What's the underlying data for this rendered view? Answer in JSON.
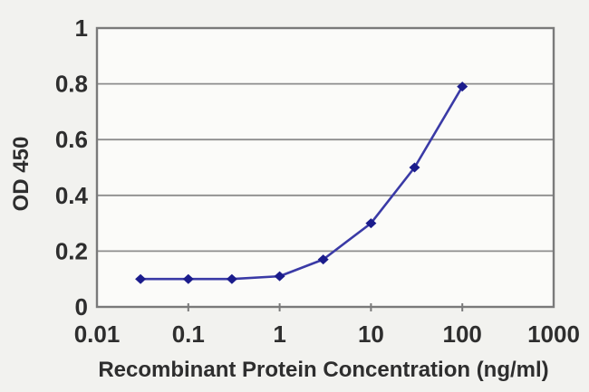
{
  "chart_data": {
    "type": "line",
    "title": "",
    "xlabel": "Recombinant Protein Concentration (ng/ml)",
    "ylabel": "OD 450",
    "x_scale": "log",
    "xlim": [
      0.01,
      1000
    ],
    "ylim": [
      0,
      1
    ],
    "x": [
      0.03,
      0.1,
      0.3,
      1,
      3,
      10,
      30,
      100
    ],
    "series": [
      {
        "name": "OD 450",
        "values": [
          0.1,
          0.1,
          0.1,
          0.11,
          0.17,
          0.3,
          0.5,
          0.79
        ]
      }
    ],
    "x_ticks": [
      0.01,
      0.1,
      1,
      10,
      100,
      1000
    ],
    "x_tick_labels": [
      "0.01",
      "0.1",
      "1",
      "10",
      "100",
      "1000"
    ],
    "y_ticks": [
      0,
      0.2,
      0.4,
      0.6,
      0.8,
      1
    ],
    "y_tick_labels": [
      "0",
      "0.2",
      "0.4",
      "0.6",
      "0.8",
      "1"
    ],
    "grid": "horizontal",
    "legend": "none",
    "marker": "diamond",
    "colors": {
      "line": "#3a3aa6",
      "marker": "#1b1c8c",
      "gridline": "#8d8d8d",
      "frame": "#7a7a7a",
      "tick": "#7a7a7a",
      "text": "#2e2e2e",
      "background": "#f2f2ef",
      "plot_background": "#fbfbf9"
    }
  }
}
